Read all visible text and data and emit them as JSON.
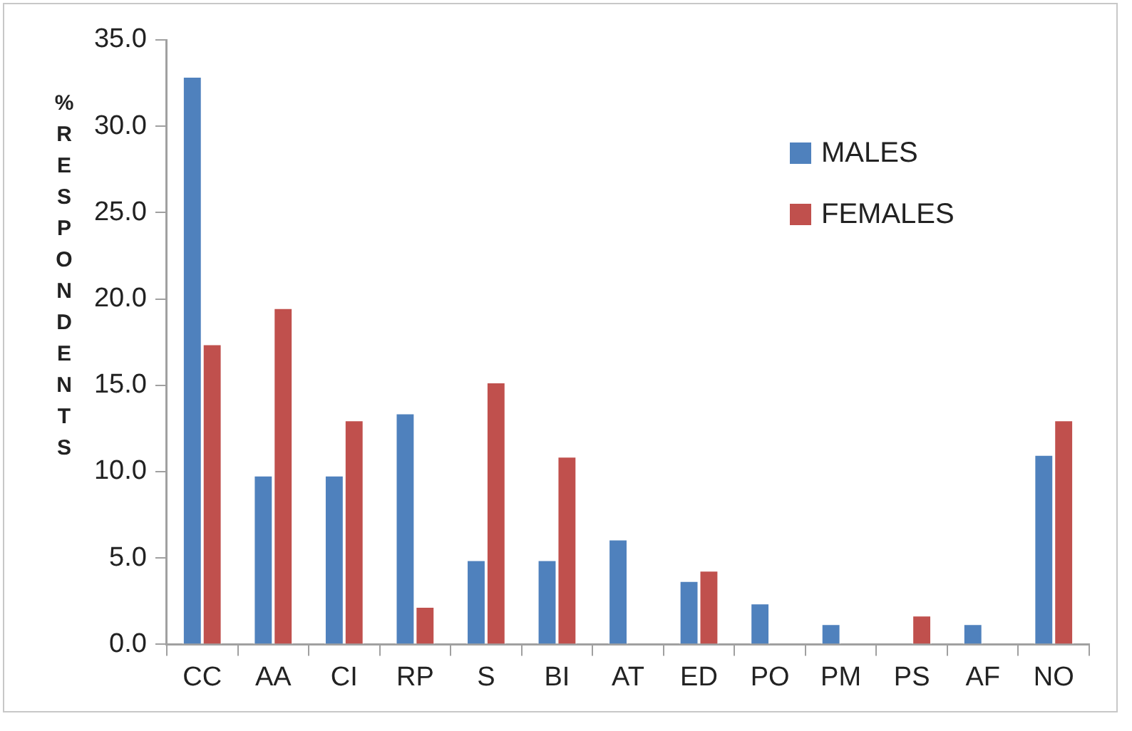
{
  "chart_data": {
    "type": "bar",
    "ylabel": "% RESPONDENTS",
    "categories": [
      "CC",
      "AA",
      "CI",
      "RP",
      "S",
      "BI",
      "AT",
      "ED",
      "PO",
      "PM",
      "PS",
      "AF",
      "NO"
    ],
    "series": [
      {
        "name": "MALES",
        "color": "#4f81bd",
        "values": [
          32.9,
          9.8,
          9.8,
          13.4,
          4.9,
          4.9,
          6.1,
          3.7,
          2.4,
          1.2,
          0,
          1.2,
          11.0
        ]
      },
      {
        "name": "FEMALES",
        "color": "#c0504d",
        "values": [
          17.4,
          19.5,
          13.0,
          2.2,
          15.2,
          10.9,
          0,
          4.3,
          0,
          0,
          1.7,
          0,
          13.0
        ]
      }
    ],
    "ylim": [
      0,
      35
    ],
    "yticks": [
      {
        "value": 0,
        "label": "0.0"
      },
      {
        "value": 5,
        "label": "5.0"
      },
      {
        "value": 10,
        "label": "10.0"
      },
      {
        "value": 15,
        "label": "15.0"
      },
      {
        "value": 20,
        "label": "20.0"
      },
      {
        "value": 25,
        "label": "25.0"
      },
      {
        "value": 30,
        "label": "30.0"
      },
      {
        "value": 35,
        "label": "35.0"
      }
    ],
    "grid": false,
    "legend": "top right"
  }
}
